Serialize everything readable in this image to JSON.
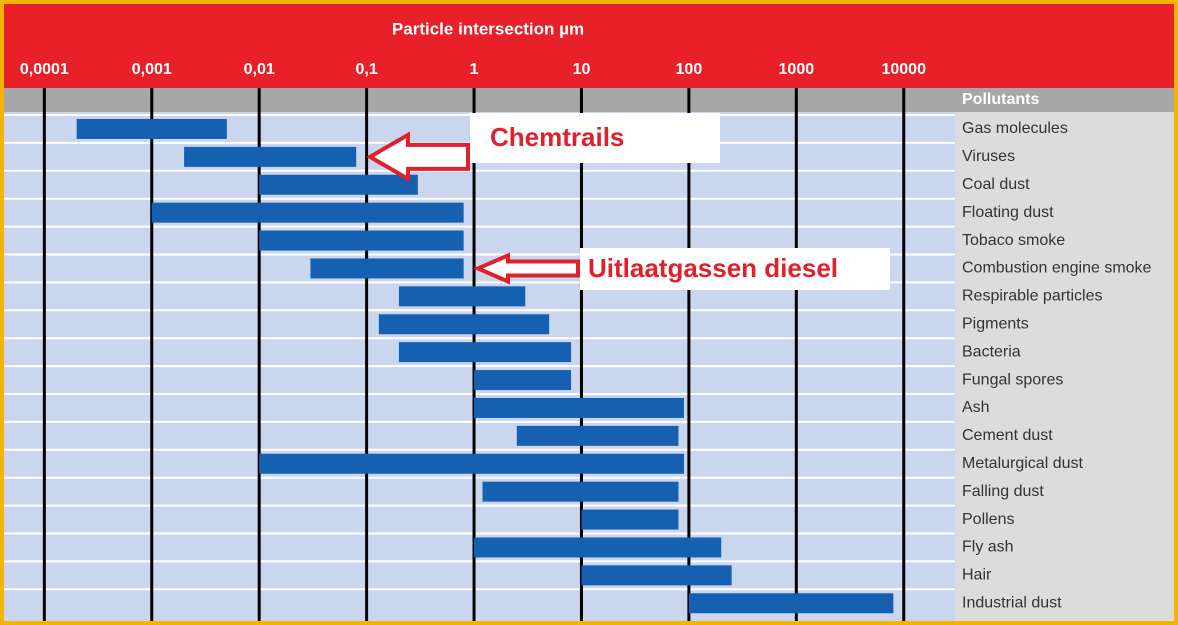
{
  "chart_data": {
    "type": "floating-bar",
    "title": "Particle intersection µm",
    "category_header": "Pollutants",
    "log_x": true,
    "xlim": [
      5e-05,
      30000
    ],
    "xticks": [
      {
        "value": 0.0001,
        "label": "0,0001"
      },
      {
        "value": 0.001,
        "label": "0,001"
      },
      {
        "value": 0.01,
        "label": "0,01"
      },
      {
        "value": 0.1,
        "label": "0,1"
      },
      1,
      10,
      100,
      1000,
      10000
    ],
    "color": "#1560b0",
    "categories": [
      "Gas molecules",
      "Viruses",
      "Coal dust",
      "Floating dust",
      "Tobaco smoke",
      "Combustion engine smoke",
      "Respirable particles",
      "Pigments",
      "Bacteria",
      "Fungal spores",
      "Ash",
      "Cement dust",
      "Metalurgical dust",
      "Falling dust",
      "Pollens",
      "Fly ash",
      "Hair",
      "Industrial dust"
    ],
    "starts": [
      0.0002,
      0.002,
      0.01,
      0.001,
      0.01,
      0.03,
      0.2,
      0.13,
      0.2,
      1,
      1,
      2.5,
      0.01,
      1.2,
      10,
      1,
      10,
      100
    ],
    "ends": [
      0.005,
      0.08,
      0.3,
      0.8,
      0.8,
      0.8,
      3,
      5,
      8,
      8,
      90,
      80,
      90,
      80,
      80,
      200,
      250,
      8000
    ],
    "annotations": [
      {
        "text": "Chemtrails",
        "category": 1
      },
      {
        "text": "Uitlaatgassen diesel",
        "category": 5
      }
    ]
  }
}
